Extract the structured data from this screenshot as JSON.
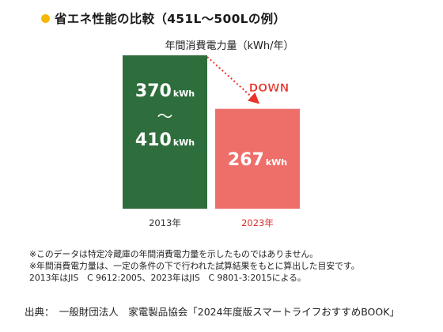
{
  "header": {
    "title": "省エネ性能の比較（451L～500Lの例）",
    "bullet_color": "#f5b800"
  },
  "chart_data": {
    "type": "bar",
    "title": "年間消費電力量（kWh/年）",
    "unit": "kWh",
    "categories": [
      "2013年",
      "2023年"
    ],
    "ranges": [
      {
        "category": "2013年",
        "low": 370,
        "high": 410,
        "label_low": "370",
        "label_high": "410",
        "separator": "～",
        "color": "#2e6e3c",
        "label_color": "#333333"
      },
      {
        "category": "2023年",
        "low": 267,
        "high": 267,
        "label": "267",
        "color": "#ee6f6a",
        "label_color": "#d9312b"
      }
    ],
    "annotation": {
      "text": "DOWN",
      "color": "#e8322a",
      "arrow_color": "#e8322a"
    },
    "grid": false,
    "legend": "none"
  },
  "notes": [
    "※このデータは特定冷蔵庫の年間消費電力量を示したものではありません。",
    "※年間消費電力量は、一定の条件の下で行われた試算結果をもとに算出した目安です。",
    "2013年はJIS　C 9612:2005、2023年はJIS　C 9801-3:2015による。"
  ],
  "source": "出典：　一般財団法人　家電製品協会「2024年度版スマートライフおすすめBOOK」"
}
